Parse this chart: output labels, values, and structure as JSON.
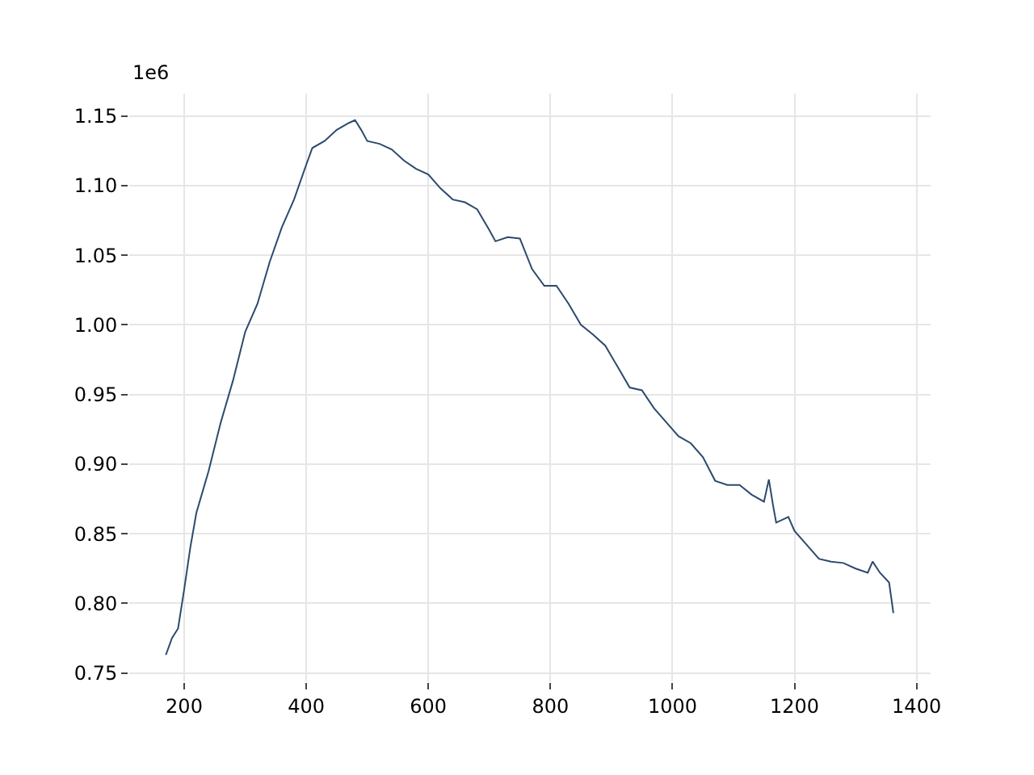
{
  "chart_data": {
    "type": "line",
    "x": [
      170,
      180,
      190,
      200,
      210,
      220,
      240,
      260,
      280,
      300,
      320,
      340,
      360,
      380,
      400,
      410,
      430,
      450,
      470,
      480,
      490,
      500,
      520,
      540,
      560,
      580,
      600,
      620,
      640,
      660,
      680,
      700,
      710,
      730,
      750,
      770,
      790,
      810,
      830,
      850,
      870,
      890,
      910,
      930,
      950,
      970,
      990,
      1010,
      1030,
      1050,
      1070,
      1090,
      1110,
      1130,
      1150,
      1158,
      1165,
      1170,
      1190,
      1200,
      1220,
      1240,
      1260,
      1280,
      1300,
      1320,
      1328,
      1340,
      1355,
      1362
    ],
    "series": [
      {
        "color": "#2c4a6e",
        "values": [
          0.763,
          0.775,
          0.782,
          0.81,
          0.84,
          0.865,
          0.895,
          0.93,
          0.96,
          0.995,
          1.015,
          1.045,
          1.07,
          1.09,
          1.115,
          1.127,
          1.132,
          1.14,
          1.145,
          1.147,
          1.14,
          1.132,
          1.13,
          1.126,
          1.118,
          1.112,
          1.108,
          1.098,
          1.09,
          1.088,
          1.083,
          1.068,
          1.06,
          1.063,
          1.062,
          1.04,
          1.028,
          1.028,
          1.015,
          1.0,
          0.993,
          0.985,
          0.97,
          0.955,
          0.953,
          0.94,
          0.93,
          0.92,
          0.915,
          0.905,
          0.888,
          0.885,
          0.885,
          0.878,
          0.873,
          0.889,
          0.87,
          0.858,
          0.862,
          0.852,
          0.842,
          0.832,
          0.83,
          0.829,
          0.825,
          0.822,
          0.83,
          0.822,
          0.815,
          0.793
        ]
      }
    ],
    "xlim": [
      110,
      1423
    ],
    "xticks": [
      200,
      400,
      600,
      800,
      1000,
      1200,
      1400
    ],
    "ylim": [
      0.744,
      1.166
    ],
    "yticks": [
      0.75,
      {
        "value": 0.8,
        "label": "0.80"
      },
      0.85,
      {
        "value": 0.9,
        "label": "0.90"
      },
      0.95,
      {
        "value": 1.0,
        "label": "1.00"
      },
      1.05,
      {
        "value": 1.1,
        "label": "1.10"
      },
      1.15
    ],
    "annotations": [
      "1e6"
    ],
    "grid": true,
    "marker": "none",
    "line_style": "solid"
  }
}
